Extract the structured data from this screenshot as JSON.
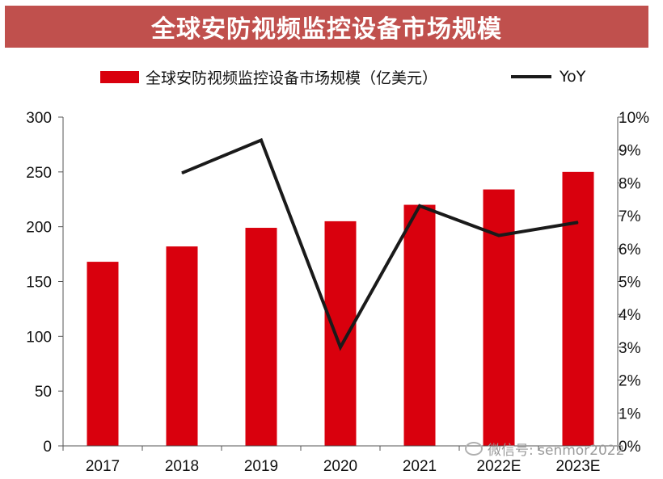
{
  "title": "全球安防视频监控设备市场规模",
  "watermark": "微信号: senmor2022",
  "chart_data": {
    "type": "bar",
    "categories": [
      "2017",
      "2018",
      "2019",
      "2020",
      "2021",
      "2022E",
      "2023E"
    ],
    "series": [
      {
        "name": "全球安防视频监控设备市场规模（亿美元）",
        "kind": "bar",
        "axis": "left",
        "values": [
          168,
          182,
          199,
          205,
          220,
          234,
          250
        ],
        "color": "#d9000d"
      },
      {
        "name": "YoY",
        "kind": "line",
        "axis": "right",
        "values": [
          null,
          8.3,
          9.3,
          3.0,
          7.3,
          6.4,
          6.8
        ],
        "color": "#1a1a1a"
      }
    ],
    "ylim": [
      0,
      300
    ],
    "yticks": [
      "0",
      "50",
      "100",
      "150",
      "200",
      "250",
      "300"
    ],
    "y2lim": [
      0,
      10
    ],
    "y2ticks": [
      "0%",
      "1%",
      "2%",
      "3%",
      "4%",
      "5%",
      "6%",
      "7%",
      "8%",
      "9%",
      "10%"
    ],
    "grid": false,
    "legend_position": "top"
  }
}
